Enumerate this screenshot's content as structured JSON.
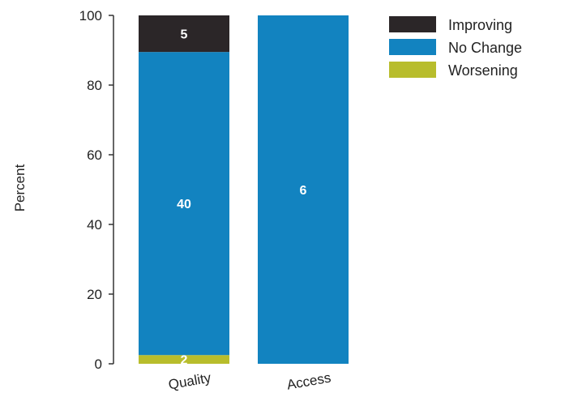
{
  "chart_data": {
    "type": "bar",
    "stacked": true,
    "categories": [
      "Quality",
      "Access"
    ],
    "series": [
      {
        "name": "Worsening",
        "color": "#b8bd2c",
        "values": [
          2.5,
          0
        ],
        "labels": [
          "2",
          ""
        ]
      },
      {
        "name": "No Change",
        "color": "#1283c0",
        "values": [
          87,
          100
        ],
        "labels": [
          "40",
          "6"
        ]
      },
      {
        "name": "Improving",
        "color": "#2b2628",
        "values": [
          10.5,
          0
        ],
        "labels": [
          "5",
          ""
        ]
      }
    ],
    "legend_order": [
      "Improving",
      "No Change",
      "Worsening"
    ],
    "legend_position": "top-right",
    "ylabel": "Percent",
    "xlabel": "",
    "title": "",
    "ylim": [
      0,
      100
    ],
    "yticks": [
      0,
      20,
      40,
      60,
      80,
      100
    ],
    "grid": false
  }
}
